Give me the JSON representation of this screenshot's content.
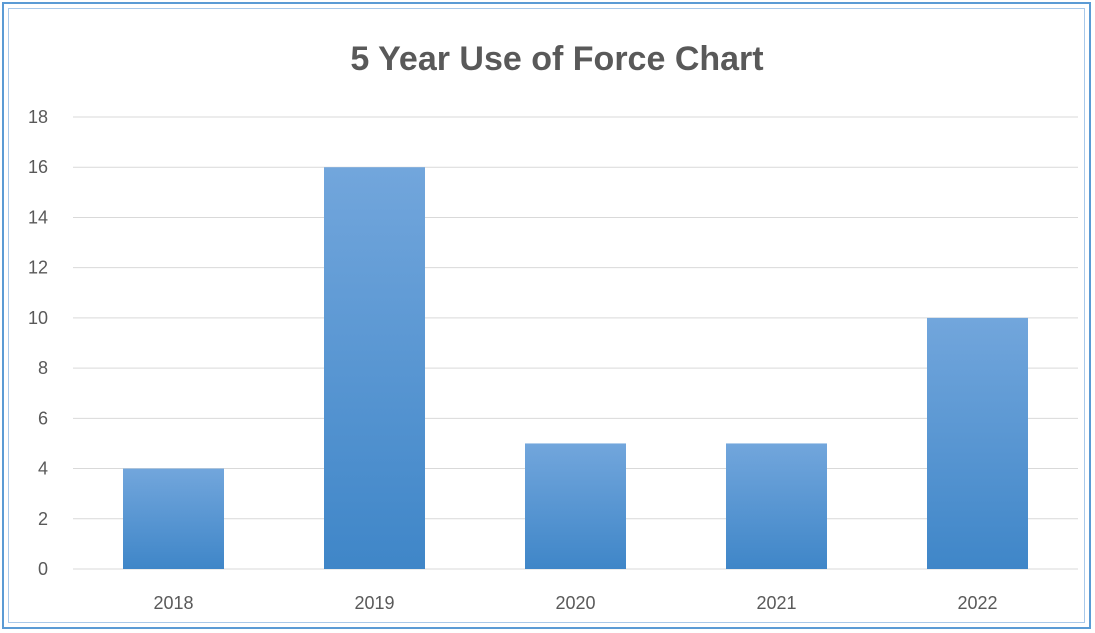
{
  "chart_data": {
    "type": "bar",
    "title": "5 Year Use of Force Chart",
    "xlabel": "",
    "ylabel": "",
    "categories": [
      "2018",
      "2019",
      "2020",
      "2021",
      "2022"
    ],
    "values": [
      4,
      16,
      5,
      5,
      10
    ],
    "ylim": [
      0,
      18
    ],
    "yticks": [
      0,
      2,
      4,
      6,
      8,
      10,
      12,
      14,
      16,
      18
    ],
    "grid": true,
    "legend": "none",
    "colors": {
      "bar_top": "#72a6dc",
      "bar_bottom": "#3f86c8",
      "frame": "#5b9bd5"
    }
  }
}
